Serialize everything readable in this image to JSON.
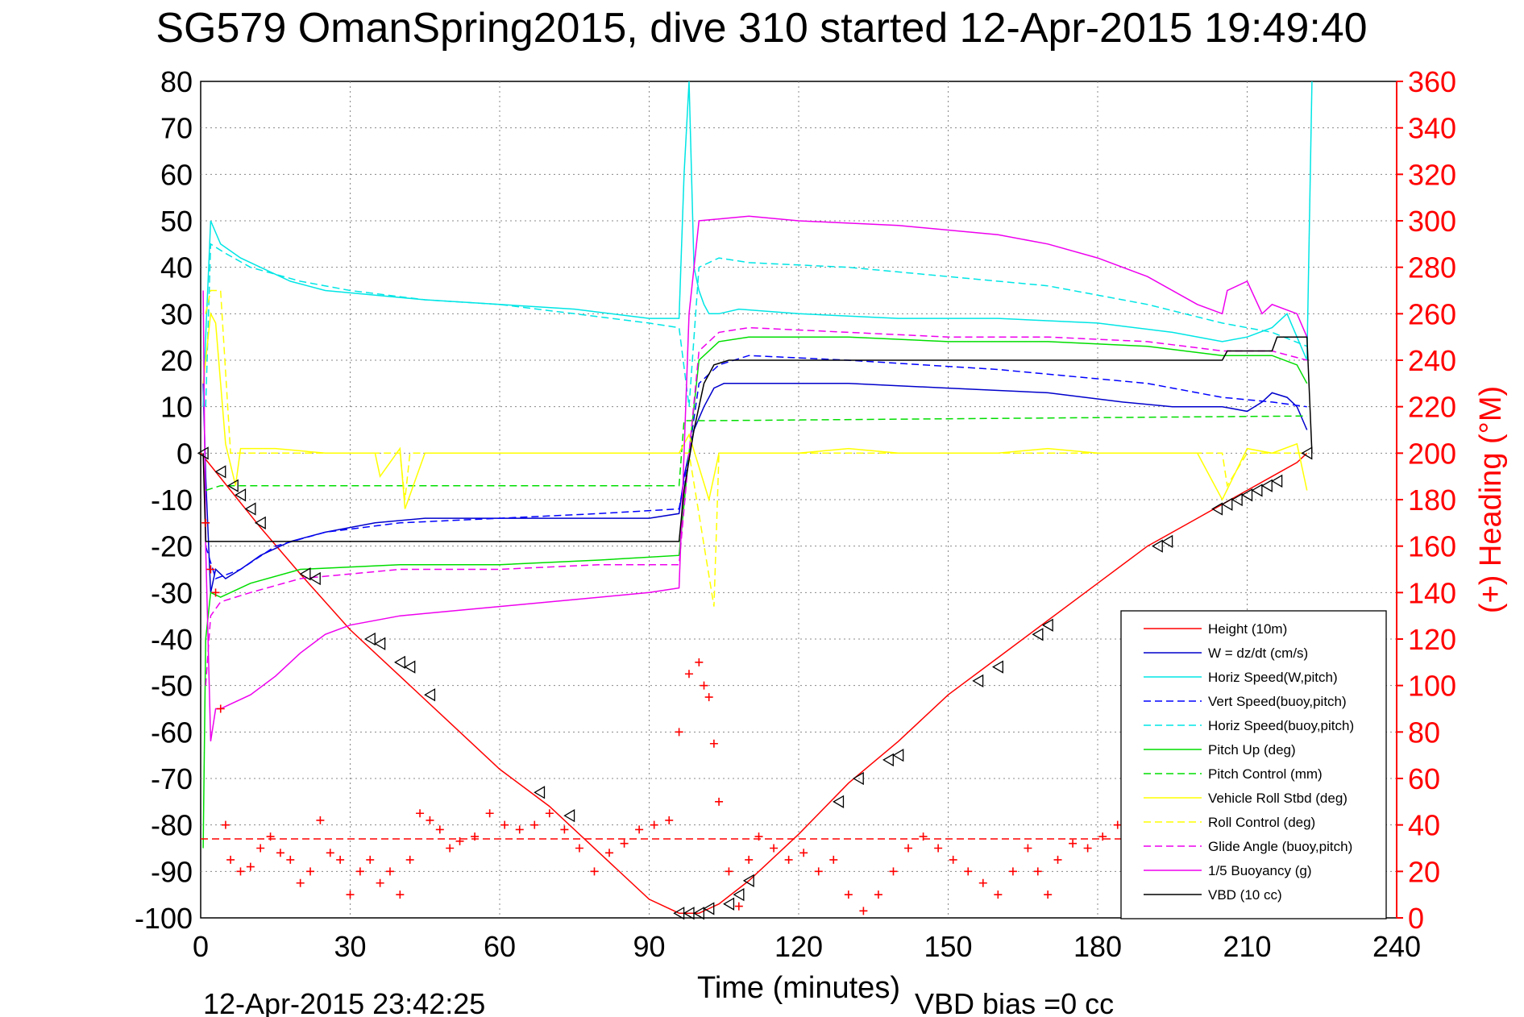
{
  "chart_data": {
    "type": "line",
    "title": "SG579 OmanSpring2015, dive 310 started 12-Apr-2015 19:49:40",
    "xlabel": "Time (minutes)",
    "ylabel_left": "",
    "ylabel_right": "(+) Heading (°M)",
    "xlim": [
      0,
      240
    ],
    "ylim_left": [
      -100,
      80
    ],
    "ylim_right": [
      0,
      360
    ],
    "xticks": [
      "0",
      "30",
      "60",
      "90",
      "120",
      "150",
      "180",
      "210",
      "240"
    ],
    "yticks_left": [
      "-100",
      "-90",
      "-80",
      "-70",
      "-60",
      "-50",
      "-40",
      "-30",
      "-20",
      "-10",
      "0",
      "10",
      "20",
      "30",
      "40",
      "50",
      "60",
      "70",
      "80"
    ],
    "yticks_right": [
      "0",
      "20",
      "40",
      "60",
      "80",
      "100",
      "120",
      "140",
      "160",
      "180",
      "200",
      "220",
      "240",
      "260",
      "280",
      "300",
      "320",
      "340",
      "360"
    ],
    "grid": true,
    "legend_position": "lower-right",
    "footer_left": "12-Apr-2015 23:42:25",
    "footer_right": "VBD bias =0 cc",
    "colors": {
      "height": "#ff0000",
      "w": "#0000cc",
      "horiz": "#00e5e5",
      "vert_buoy": "#0000ff",
      "horiz_buoy": "#00e5e5",
      "pitch": "#00dd00",
      "pitch_ctrl": "#00dd00",
      "roll": "#ffff00",
      "roll_ctrl": "#ffff00",
      "glide": "#ee00ee",
      "buoy": "#ee00ee",
      "vbd": "#000000",
      "heading": "#ff0000"
    },
    "series": [
      {
        "key": "height",
        "name": "Height (10m)",
        "style": "solid",
        "color": "#ff0000",
        "x": [
          0,
          3,
          6,
          9,
          12,
          20,
          30,
          40,
          50,
          60,
          70,
          80,
          90,
          96,
          98,
          100,
          102,
          104,
          110,
          120,
          130,
          140,
          150,
          160,
          170,
          180,
          190,
          200,
          205,
          210,
          215,
          220,
          222
        ],
        "y": [
          0,
          -4,
          -8,
          -12,
          -16,
          -26,
          -38,
          -48,
          -58,
          -68,
          -76,
          -86,
          -96,
          -99,
          -99,
          -99,
          -98,
          -97,
          -92,
          -82,
          -71,
          -62,
          -52,
          -44,
          -36,
          -28,
          -20,
          -14,
          -11,
          -8,
          -5,
          -2,
          0
        ]
      },
      {
        "key": "w",
        "name": "W = dz/dt (cm/s)",
        "style": "solid",
        "color": "#0000cc",
        "x": [
          0.5,
          1,
          2,
          3,
          5,
          8,
          12,
          18,
          25,
          35,
          45,
          60,
          75,
          90,
          96,
          97,
          99,
          101,
          103,
          105,
          110,
          130,
          150,
          170,
          185,
          195,
          205,
          210,
          213,
          215,
          218,
          220,
          222
        ],
        "y": [
          15,
          -5,
          -30,
          -25,
          -27,
          -25,
          -22,
          -19,
          -17,
          -15,
          -14,
          -14,
          -14,
          -14,
          -13,
          -5,
          5,
          10,
          14,
          15,
          15,
          15,
          14,
          13,
          11,
          10,
          10,
          9,
          11,
          13,
          12,
          10,
          5
        ]
      },
      {
        "key": "horiz",
        "name": "Horiz Speed(W,pitch)",
        "style": "solid",
        "color": "#00e5e5",
        "x": [
          0.5,
          1,
          2,
          4,
          8,
          12,
          18,
          25,
          35,
          45,
          60,
          75,
          90,
          96,
          97,
          98,
          99,
          100,
          101,
          102,
          104,
          108,
          120,
          140,
          160,
          180,
          195,
          205,
          210,
          215,
          218,
          220,
          222,
          223
        ],
        "y": [
          10,
          25,
          50,
          45,
          42,
          40,
          37,
          35,
          34,
          33,
          32,
          31,
          29,
          29,
          60,
          80,
          40,
          35,
          32,
          30,
          30,
          31,
          30,
          29,
          29,
          28,
          26,
          24,
          25,
          27,
          30,
          25,
          20,
          80
        ]
      },
      {
        "key": "vert_buoy",
        "name": "Vert Speed(buoy,pitch)",
        "style": "dashed",
        "color": "#0000ff",
        "x": [
          1,
          3,
          8,
          15,
          25,
          40,
          60,
          80,
          96,
          98,
          100,
          104,
          110,
          130,
          160,
          190,
          205,
          215,
          222
        ],
        "y": [
          -20,
          -27,
          -25,
          -20,
          -17,
          -15,
          -14,
          -13,
          -12,
          0,
          15,
          19,
          21,
          20,
          18,
          15,
          12,
          11,
          10
        ]
      },
      {
        "key": "horiz_buoy",
        "name": "Horiz Speed(buoy,pitch)",
        "style": "dashed",
        "color": "#00e5e5",
        "x": [
          1,
          2,
          5,
          10,
          20,
          30,
          45,
          60,
          75,
          90,
          96,
          98,
          100,
          104,
          110,
          130,
          150,
          170,
          190,
          205,
          215,
          222
        ],
        "y": [
          10,
          45,
          43,
          40,
          37,
          35,
          33,
          32,
          30,
          28,
          27,
          10,
          40,
          42,
          41,
          40,
          38,
          36,
          32,
          28,
          26,
          23
        ]
      },
      {
        "key": "pitch",
        "name": "Pitch Up (deg)",
        "style": "solid",
        "color": "#00dd00",
        "x": [
          0.5,
          1,
          2,
          4,
          10,
          20,
          40,
          60,
          80,
          96,
          98,
          100,
          104,
          110,
          130,
          150,
          170,
          190,
          205,
          215,
          220,
          222
        ],
        "y": [
          -85,
          -40,
          -30,
          -31,
          -28,
          -25,
          -24,
          -24,
          -23,
          -22,
          0,
          20,
          24,
          25,
          25,
          24,
          24,
          23,
          21,
          21,
          19,
          15
        ]
      },
      {
        "key": "pitch_ctrl",
        "name": "Pitch Control (mm)",
        "style": "dashed",
        "color": "#00dd00",
        "x": [
          1,
          4,
          96,
          97,
          102,
          222
        ],
        "y": [
          -8,
          -7,
          -7,
          7,
          7,
          8
        ]
      },
      {
        "key": "roll",
        "name": "Vehicle Roll Stbd (deg)",
        "style": "solid",
        "color": "#ffff00",
        "x": [
          0.5,
          1,
          2,
          3,
          5,
          7,
          8,
          10,
          15,
          25,
          35,
          36,
          40,
          41,
          45,
          50,
          60,
          70,
          80,
          90,
          96,
          98,
          102,
          104,
          110,
          115,
          120,
          130,
          140,
          150,
          160,
          170,
          180,
          190,
          200,
          205,
          210,
          215,
          220,
          222
        ],
        "y": [
          15,
          20,
          30,
          28,
          2,
          -7,
          1,
          1,
          1,
          0,
          0,
          -5,
          1,
          -12,
          0,
          0,
          0,
          0,
          0,
          0,
          0,
          4,
          -10,
          0,
          0,
          0,
          0,
          1,
          0,
          0,
          0,
          1,
          0,
          0,
          0,
          -10,
          1,
          0,
          2,
          -8
        ]
      },
      {
        "key": "roll_ctrl",
        "name": "Roll Control (deg)",
        "style": "dashed",
        "color": "#ffff00",
        "x": [
          1,
          2,
          4,
          6,
          10,
          40,
          41,
          42,
          96,
          98,
          103,
          104,
          110,
          140,
          180,
          205,
          206,
          210,
          222
        ],
        "y": [
          30,
          35,
          35,
          0,
          0,
          0,
          -10,
          0,
          0,
          0,
          -33,
          0,
          0,
          0,
          0,
          0,
          -7,
          0,
          0
        ]
      },
      {
        "key": "glide",
        "name": "Glide Angle (buoy,pitch)",
        "style": "dashed",
        "color": "#ee00ee",
        "x": [
          1,
          2,
          4,
          10,
          20,
          40,
          60,
          80,
          96,
          98,
          100,
          104,
          110,
          130,
          150,
          170,
          190,
          205,
          215,
          222
        ],
        "y": [
          -50,
          -35,
          -32,
          -30,
          -27,
          -25,
          -25,
          -24,
          -24,
          0,
          22,
          26,
          27,
          26,
          25,
          25,
          24,
          22,
          22,
          20
        ]
      },
      {
        "key": "buoy",
        "name": "1/5 Buoyancy (g)",
        "style": "solid",
        "color": "#ee00ee",
        "x": [
          0.5,
          1,
          2,
          3,
          4,
          6,
          10,
          15,
          20,
          25,
          30,
          40,
          50,
          60,
          70,
          80,
          90,
          96,
          97,
          98,
          100,
          110,
          120,
          140,
          160,
          170,
          180,
          190,
          200,
          205,
          206,
          210,
          213,
          215,
          220,
          222
        ],
        "y": [
          35,
          -20,
          -62,
          -55,
          -55,
          -54,
          -52,
          -48,
          -43,
          -39,
          -37,
          -35,
          -34,
          -33,
          -32,
          -31,
          -30,
          -29,
          0,
          30,
          50,
          51,
          50,
          49,
          47,
          45,
          42,
          38,
          32,
          30,
          35,
          37,
          30,
          32,
          30,
          25
        ]
      },
      {
        "key": "vbd",
        "name": "VBD (10 cc)",
        "style": "solid",
        "color": "#000000",
        "x": [
          0.5,
          1,
          2,
          96,
          97,
          99,
          101,
          103,
          106,
          110,
          150,
          170,
          172,
          205,
          206,
          215,
          216,
          222,
          223
        ],
        "y": [
          0,
          -19,
          -19,
          -19,
          -8,
          5,
          15,
          19,
          20,
          20,
          20,
          20,
          20,
          20,
          22,
          22,
          25,
          25,
          0
        ]
      },
      {
        "key": "heading",
        "name": "",
        "style": "markers",
        "color": "#ff0000",
        "axis": "right",
        "x": [
          1,
          2,
          3,
          4,
          5,
          6,
          8,
          10,
          12,
          14,
          16,
          18,
          20,
          22,
          24,
          26,
          28,
          30,
          32,
          34,
          36,
          38,
          40,
          42,
          44,
          46,
          48,
          50,
          52,
          55,
          58,
          61,
          64,
          67,
          70,
          73,
          76,
          79,
          82,
          85,
          88,
          91,
          94,
          96,
          98,
          100,
          101,
          102,
          103,
          104,
          106,
          108,
          110,
          112,
          115,
          118,
          121,
          124,
          127,
          130,
          133,
          136,
          139,
          142,
          145,
          148,
          151,
          154,
          157,
          160,
          163,
          166,
          168,
          170,
          172,
          175,
          178,
          181,
          184,
          186
        ],
        "y": [
          170,
          150,
          140,
          90,
          40,
          25,
          20,
          22,
          30,
          35,
          28,
          25,
          15,
          20,
          42,
          28,
          25,
          10,
          20,
          25,
          15,
          20,
          10,
          25,
          45,
          42,
          38,
          30,
          33,
          35,
          45,
          40,
          38,
          40,
          45,
          38,
          30,
          20,
          28,
          32,
          38,
          40,
          42,
          80,
          105,
          110,
          100,
          95,
          75,
          50,
          20,
          5,
          25,
          35,
          30,
          25,
          28,
          20,
          25,
          10,
          3,
          10,
          20,
          30,
          35,
          30,
          25,
          20,
          15,
          10,
          20,
          30,
          20,
          10,
          25,
          32,
          30,
          35,
          40,
          45
        ]
      },
      {
        "key": "heading_ref",
        "name": "",
        "style": "dashed",
        "color": "#ff0000",
        "axis": "right",
        "x": [
          0,
          223
        ],
        "y": [
          34,
          34
        ]
      }
    ],
    "height_markers": {
      "x": [
        0.5,
        4,
        6.5,
        8,
        10,
        12,
        21,
        23,
        34,
        36,
        40,
        42,
        46,
        68,
        74,
        96,
        98,
        100,
        102,
        106,
        108,
        110,
        128,
        132,
        138,
        140,
        156,
        160,
        168,
        170,
        192,
        194,
        204,
        206,
        208,
        210,
        212,
        214,
        216,
        222
      ],
      "y": [
        0,
        -4,
        -7,
        -9,
        -12,
        -15,
        -26,
        -27,
        -40,
        -41,
        -45,
        -46,
        -52,
        -73,
        -78,
        -99,
        -99,
        -99,
        -98,
        -97,
        -95,
        -92,
        -75,
        -70,
        -66,
        -65,
        -49,
        -46,
        -39,
        -37,
        -20,
        -19,
        -12,
        -11,
        -10,
        -9,
        -8,
        -7,
        -6,
        0
      ]
    }
  }
}
